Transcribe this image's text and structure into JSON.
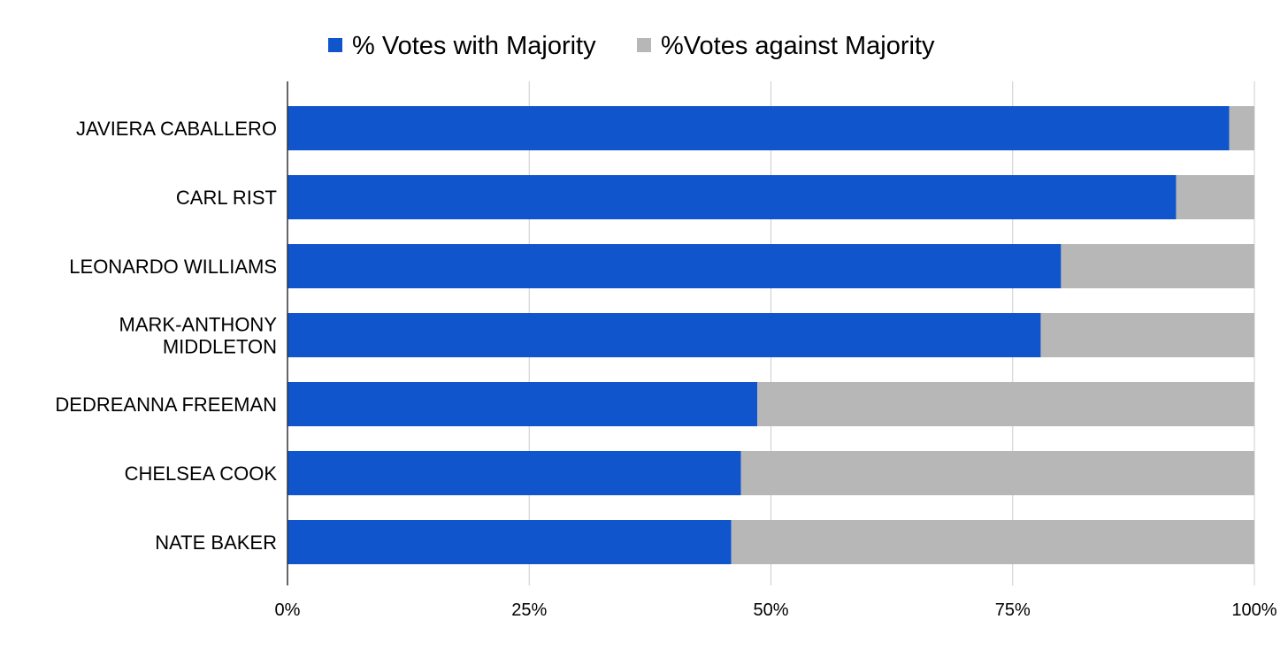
{
  "chart_data": {
    "type": "bar",
    "orientation": "horizontal",
    "stacked": true,
    "categories": [
      "JAVIERA CABALLERO",
      "CARL RIST",
      "LEONARDO WILLIAMS",
      "MARK-ANTHONY MIDDLETON",
      "DEDREANNA FREEMAN",
      "CHELSEA COOK",
      "NATE BAKER"
    ],
    "category_lines": [
      [
        "JAVIERA CABALLERO"
      ],
      [
        "CARL RIST"
      ],
      [
        "LEONARDO WILLIAMS"
      ],
      [
        "MARK-ANTHONY",
        "MIDDLETON"
      ],
      [
        "DEDREANNA FREEMAN"
      ],
      [
        "CHELSEA COOK"
      ],
      [
        "NATE BAKER"
      ]
    ],
    "series": [
      {
        "name": "% Votes with Majority",
        "color": "#1155cc",
        "values": [
          97.4,
          91.9,
          80.0,
          77.9,
          48.6,
          46.9,
          45.9
        ]
      },
      {
        "name": "%Votes against Majority",
        "color": "#b7b7b7",
        "values": [
          2.6,
          8.1,
          20.0,
          22.1,
          51.4,
          53.1,
          54.1
        ]
      }
    ],
    "xaxis": {
      "min": 0,
      "max": 100,
      "ticks": [
        0,
        25,
        50,
        75,
        100
      ],
      "tick_labels": [
        "0%",
        "25%",
        "50%",
        "75%",
        "100%"
      ]
    },
    "legend_position": "top-center",
    "grid": true,
    "title": "",
    "xlabel": "",
    "ylabel": ""
  }
}
